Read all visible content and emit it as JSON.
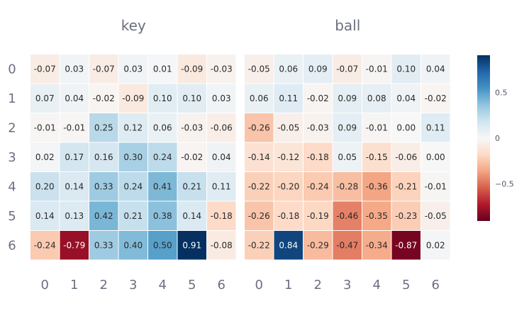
{
  "chart_data": {
    "type": "heatmap",
    "colorscale": "RdBu",
    "zmin": -0.91,
    "zmax": 0.91,
    "x": [
      "0",
      "1",
      "2",
      "3",
      "4",
      "5",
      "6"
    ],
    "y": [
      "0",
      "1",
      "2",
      "3",
      "4",
      "5",
      "6"
    ],
    "panels": [
      {
        "title": "key",
        "z": [
          [
            -0.07,
            0.03,
            -0.07,
            0.03,
            0.01,
            -0.09,
            -0.03
          ],
          [
            0.07,
            0.04,
            -0.02,
            -0.09,
            0.1,
            0.1,
            0.03
          ],
          [
            -0.01,
            -0.01,
            0.25,
            0.12,
            0.06,
            -0.03,
            -0.06
          ],
          [
            0.02,
            0.17,
            0.16,
            0.3,
            0.24,
            -0.02,
            0.04
          ],
          [
            0.2,
            0.14,
            0.33,
            0.24,
            0.41,
            0.21,
            0.11
          ],
          [
            0.14,
            0.13,
            0.42,
            0.21,
            0.38,
            0.14,
            -0.18
          ],
          [
            -0.24,
            -0.79,
            0.33,
            0.4,
            0.5,
            0.91,
            -0.08
          ]
        ]
      },
      {
        "title": "ball",
        "z": [
          [
            -0.05,
            0.06,
            0.09,
            -0.07,
            -0.01,
            0.1,
            0.04
          ],
          [
            0.06,
            0.11,
            -0.02,
            0.09,
            0.08,
            0.04,
            -0.02
          ],
          [
            -0.26,
            -0.05,
            -0.03,
            0.09,
            -0.01,
            0.0,
            0.11
          ],
          [
            -0.14,
            -0.12,
            -0.18,
            0.05,
            -0.15,
            -0.06,
            0.0
          ],
          [
            -0.22,
            -0.2,
            -0.24,
            -0.28,
            -0.36,
            -0.21,
            -0.01
          ],
          [
            -0.26,
            -0.18,
            -0.19,
            -0.46,
            -0.35,
            -0.23,
            -0.05
          ],
          [
            -0.22,
            0.84,
            -0.29,
            -0.47,
            -0.34,
            -0.87,
            0.02
          ]
        ]
      }
    ],
    "colorbar": {
      "ticks": [
        0.5,
        0,
        -0.5
      ],
      "tick_labels": [
        "0.5",
        "0",
        "−0.5"
      ]
    }
  }
}
